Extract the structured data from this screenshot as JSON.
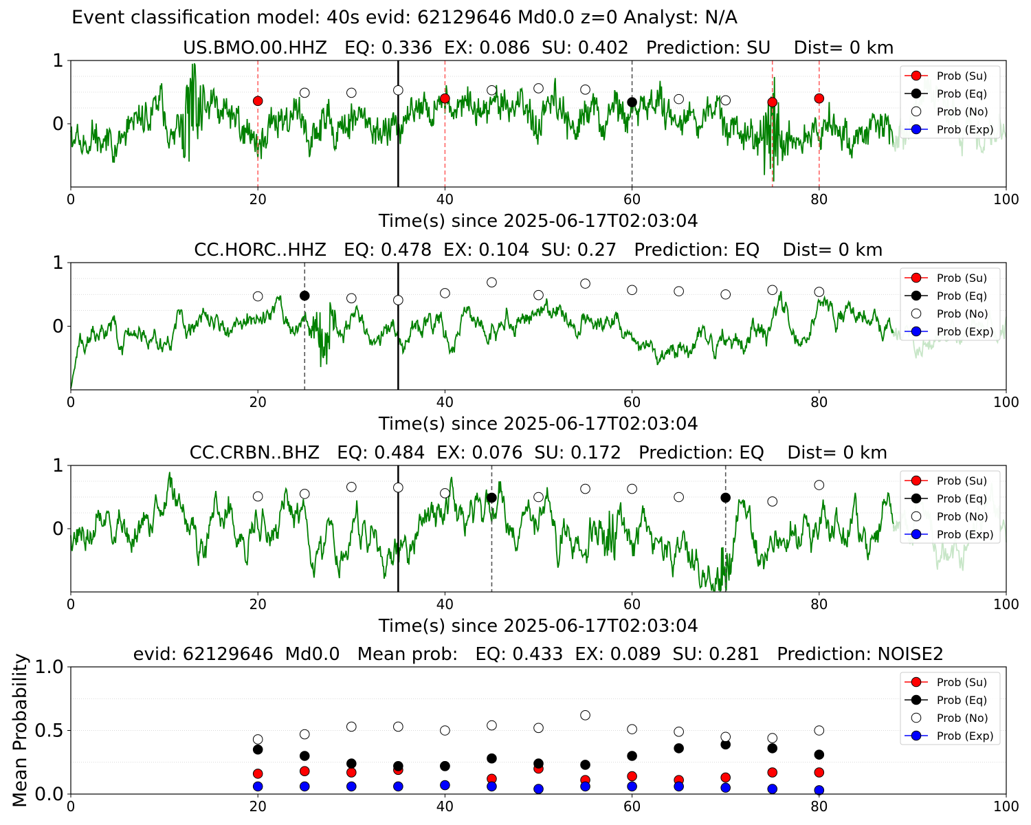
{
  "figure": {
    "suptitle": "Event classification model: 40s evid: 62129646 Md0.0 z=0 Analyst: N/A"
  },
  "colors": {
    "waveform": "#008000",
    "su": "#ff0000",
    "eq": "#000000",
    "no": "#ffffff",
    "exp": "#0000ff",
    "pick_su": "#ff6666",
    "pick_eq": "#555555"
  },
  "legend": [
    "Prob (Su)",
    "Prob (Eq)",
    "Prob (No)",
    "Prob (Exp)"
  ],
  "chart_data": [
    {
      "type": "line",
      "title": "US.BMO.00.HHZ   EQ: 0.336  EX: 0.086  SU: 0.402   Prediction: SU    Dist= 0 km",
      "xlabel": "Time(s) since 2025-06-17T02:03:04",
      "ylabel": "",
      "xlim": [
        0,
        100
      ],
      "ylim": [
        -1,
        1
      ],
      "xticks": [
        "0",
        "20",
        "40",
        "60",
        "80",
        "100"
      ],
      "yticks": [
        "0",
        "1"
      ],
      "legend_position": "top-right",
      "reference_line": 35,
      "picks": [
        {
          "t": 20,
          "class": "su"
        },
        {
          "t": 40,
          "class": "su"
        },
        {
          "t": 60,
          "class": "eq"
        },
        {
          "t": 75,
          "class": "su"
        },
        {
          "t": 80,
          "class": "su"
        }
      ],
      "markers": [
        {
          "t": 20,
          "class": "su",
          "y": 0.36
        },
        {
          "t": 25,
          "class": "no",
          "y": 0.49
        },
        {
          "t": 30,
          "class": "no",
          "y": 0.49
        },
        {
          "t": 35,
          "class": "no",
          "y": 0.53
        },
        {
          "t": 40,
          "class": "su",
          "y": 0.4
        },
        {
          "t": 45,
          "class": "no",
          "y": 0.53
        },
        {
          "t": 50,
          "class": "no",
          "y": 0.56
        },
        {
          "t": 55,
          "class": "no",
          "y": 0.54
        },
        {
          "t": 60,
          "class": "eq",
          "y": 0.34
        },
        {
          "t": 65,
          "class": "no",
          "y": 0.39
        },
        {
          "t": 70,
          "class": "no",
          "y": 0.37
        },
        {
          "t": 75,
          "class": "su",
          "y": 0.34
        },
        {
          "t": 80,
          "class": "su",
          "y": 0.4
        }
      ],
      "waveform": {
        "seed": 11,
        "amp": 0.22,
        "hf": 0.65,
        "fade_after": 88,
        "events": [
          {
            "t": 13,
            "amp": 2.2
          },
          {
            "t": 75,
            "amp": 1.6
          }
        ]
      }
    },
    {
      "type": "line",
      "title": "CC.HORC..HHZ   EQ: 0.478  EX: 0.104  SU: 0.27   Prediction: EQ    Dist= 0 km",
      "xlabel": "Time(s) since 2025-06-17T02:03:04",
      "ylabel": "",
      "xlim": [
        0,
        100
      ],
      "ylim": [
        -1,
        1
      ],
      "xticks": [
        "0",
        "20",
        "40",
        "60",
        "80",
        "100"
      ],
      "yticks": [
        "0",
        "1"
      ],
      "legend_position": "top-right",
      "reference_line": 35,
      "picks": [
        {
          "t": 25,
          "class": "eq"
        }
      ],
      "markers": [
        {
          "t": 20,
          "class": "no",
          "y": 0.47
        },
        {
          "t": 25,
          "class": "eq",
          "y": 0.48
        },
        {
          "t": 30,
          "class": "no",
          "y": 0.44
        },
        {
          "t": 35,
          "class": "no",
          "y": 0.41
        },
        {
          "t": 40,
          "class": "no",
          "y": 0.52
        },
        {
          "t": 45,
          "class": "no",
          "y": 0.69
        },
        {
          "t": 50,
          "class": "no",
          "y": 0.49
        },
        {
          "t": 55,
          "class": "no",
          "y": 0.67
        },
        {
          "t": 60,
          "class": "no",
          "y": 0.57
        },
        {
          "t": 65,
          "class": "no",
          "y": 0.55
        },
        {
          "t": 70,
          "class": "no",
          "y": 0.5
        },
        {
          "t": 75,
          "class": "no",
          "y": 0.57
        },
        {
          "t": 80,
          "class": "no",
          "y": 0.54
        }
      ],
      "waveform": {
        "seed": 23,
        "amp": 0.18,
        "hf": 0.18,
        "fade_after": 88,
        "events": [
          {
            "t": 27,
            "amp": 1.4
          }
        ],
        "start_dip": -1.0
      }
    },
    {
      "type": "line",
      "title": "CC.CRBN..BHZ   EQ: 0.484  EX: 0.076  SU: 0.172   Prediction: EQ    Dist= 0 km",
      "xlabel": "Time(s) since 2025-06-17T02:03:04",
      "ylabel": "",
      "xlim": [
        0,
        100
      ],
      "ylim": [
        -1,
        1
      ],
      "xticks": [
        "0",
        "20",
        "40",
        "60",
        "80",
        "100"
      ],
      "yticks": [
        "0",
        "1"
      ],
      "legend_position": "top-right",
      "reference_line": 35,
      "picks": [
        {
          "t": 45,
          "class": "eq"
        },
        {
          "t": 70,
          "class": "eq"
        }
      ],
      "markers": [
        {
          "t": 20,
          "class": "no",
          "y": 0.51
        },
        {
          "t": 25,
          "class": "no",
          "y": 0.55
        },
        {
          "t": 30,
          "class": "no",
          "y": 0.66
        },
        {
          "t": 35,
          "class": "no",
          "y": 0.65
        },
        {
          "t": 40,
          "class": "no",
          "y": 0.56
        },
        {
          "t": 45,
          "class": "eq",
          "y": 0.49
        },
        {
          "t": 50,
          "class": "no",
          "y": 0.5
        },
        {
          "t": 55,
          "class": "no",
          "y": 0.63
        },
        {
          "t": 60,
          "class": "no",
          "y": 0.63
        },
        {
          "t": 65,
          "class": "no",
          "y": 0.5
        },
        {
          "t": 70,
          "class": "eq",
          "y": 0.49
        },
        {
          "t": 75,
          "class": "no",
          "y": 0.43
        },
        {
          "t": 80,
          "class": "no",
          "y": 0.69
        }
      ],
      "waveform": {
        "seed": 37,
        "amp": 0.32,
        "hf": 0.12,
        "fade_after": 88,
        "events": [
          {
            "t": 58,
            "amp": 1.1
          },
          {
            "t": 70,
            "amp": 1.1
          }
        ]
      }
    },
    {
      "type": "scatter",
      "title": "evid: 62129646  Md0.0   Mean prob:   EQ: 0.433  EX: 0.089  SU: 0.281   Prediction: NOISE2",
      "xlabel": "",
      "ylabel": "Mean Probability",
      "xlim": [
        0,
        100
      ],
      "ylim": [
        0,
        1
      ],
      "xticks": [
        "0",
        "20",
        "40",
        "60",
        "80",
        "100"
      ],
      "yticks": [
        "0.0",
        "0.5",
        "1.0"
      ],
      "legend_position": "top-right",
      "x": [
        20,
        25,
        30,
        35,
        40,
        45,
        50,
        55,
        60,
        65,
        70,
        75,
        80
      ],
      "series": [
        {
          "name": "Prob (Su)",
          "class": "su",
          "values": [
            0.16,
            0.18,
            0.17,
            0.19,
            0.22,
            0.12,
            0.2,
            0.11,
            0.14,
            0.11,
            0.13,
            0.17,
            0.17
          ]
        },
        {
          "name": "Prob (Eq)",
          "class": "eq",
          "values": [
            0.35,
            0.3,
            0.24,
            0.22,
            0.22,
            0.28,
            0.24,
            0.23,
            0.3,
            0.36,
            0.39,
            0.36,
            0.31
          ]
        },
        {
          "name": "Prob (No)",
          "class": "no",
          "values": [
            0.43,
            0.47,
            0.53,
            0.53,
            0.5,
            0.54,
            0.52,
            0.62,
            0.51,
            0.49,
            0.45,
            0.44,
            0.5
          ]
        },
        {
          "name": "Prob (Exp)",
          "class": "exp",
          "values": [
            0.06,
            0.06,
            0.06,
            0.06,
            0.07,
            0.06,
            0.04,
            0.06,
            0.06,
            0.06,
            0.05,
            0.04,
            0.03
          ]
        }
      ]
    }
  ]
}
